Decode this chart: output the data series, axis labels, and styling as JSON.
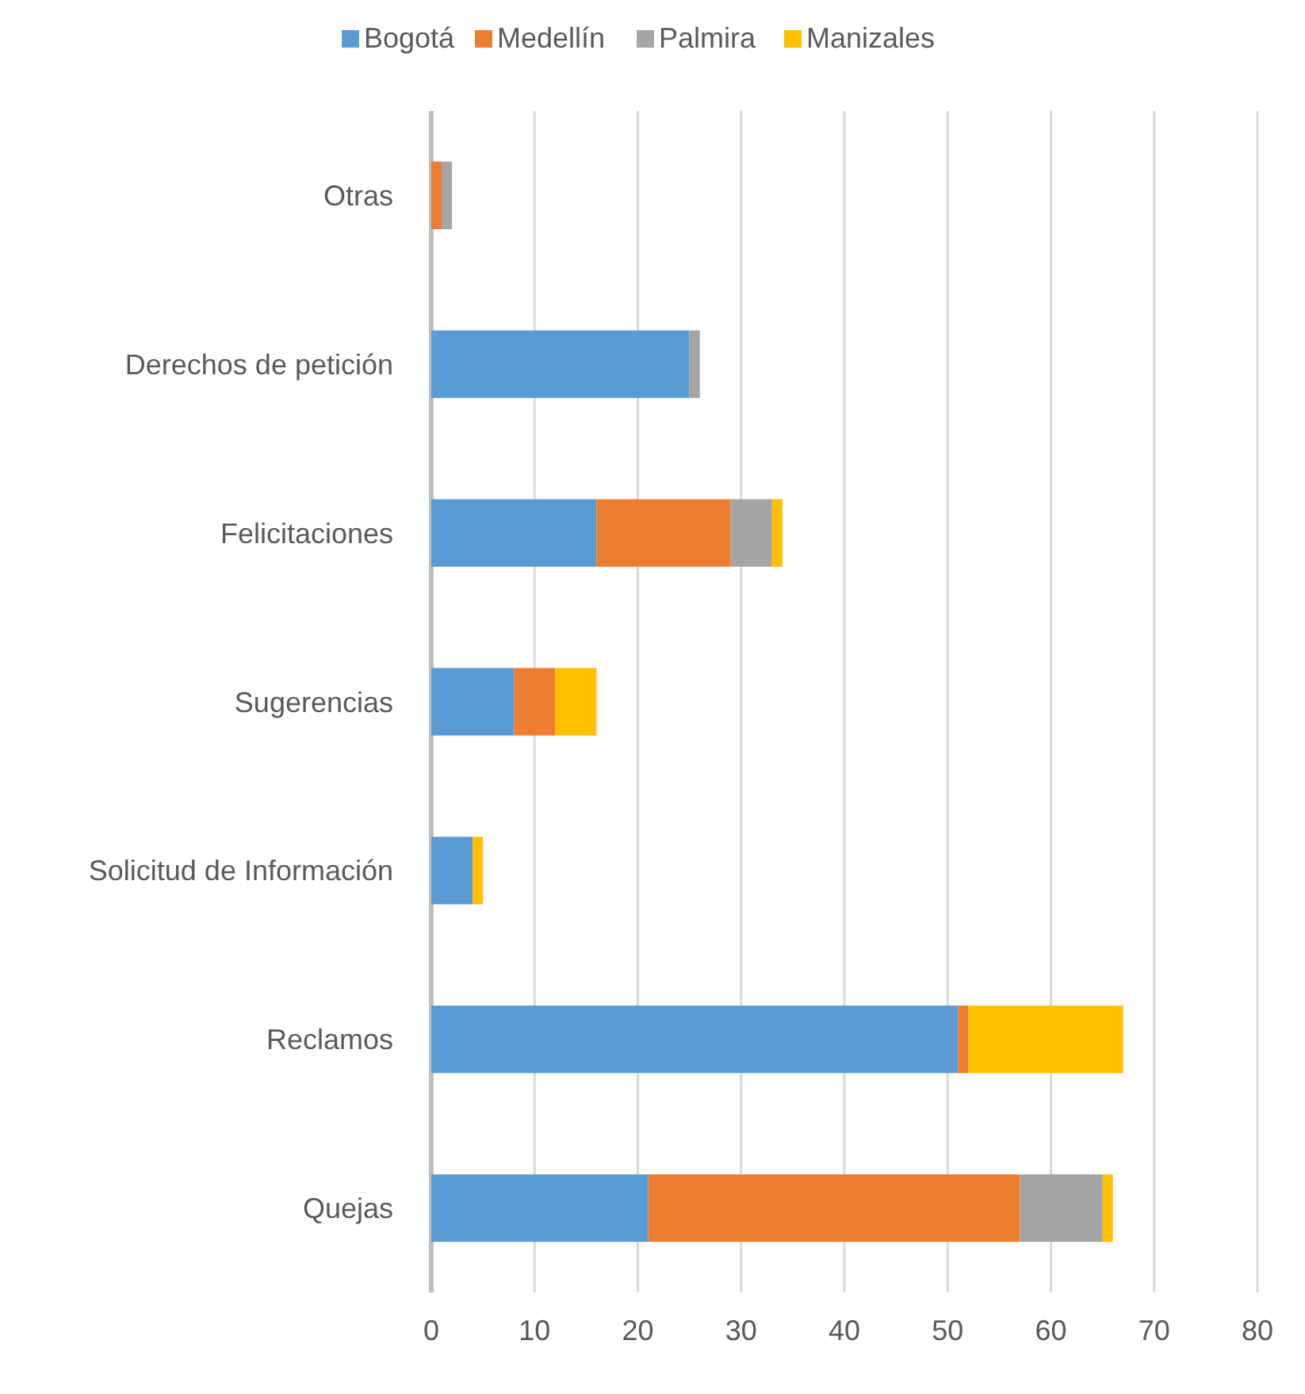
{
  "chart_data": {
    "type": "bar",
    "orientation": "horizontal",
    "stacked": true,
    "categories": [
      "Otras",
      "Derechos de petición",
      "Felicitaciones",
      "Sugerencias",
      "Solicitud de Información",
      "Reclamos",
      "Quejas"
    ],
    "series": [
      {
        "name": "Bogotá",
        "color": "#5b9bd5",
        "values": [
          0,
          25,
          16,
          8,
          4,
          51,
          21
        ]
      },
      {
        "name": "Medellín",
        "color": "#ed7d31",
        "values": [
          1,
          0,
          13,
          4,
          0,
          1,
          36
        ]
      },
      {
        "name": "Palmira",
        "color": "#a5a5a5",
        "values": [
          1,
          1,
          4,
          0,
          0,
          0,
          8
        ]
      },
      {
        "name": "Manizales",
        "color": "#ffc000",
        "values": [
          0,
          0,
          1,
          4,
          1,
          15,
          1
        ]
      }
    ],
    "xlim": [
      0,
      80
    ],
    "xticks": [
      0,
      10,
      20,
      30,
      40,
      50,
      60,
      70,
      80
    ],
    "grid": "x",
    "legend": "top"
  }
}
